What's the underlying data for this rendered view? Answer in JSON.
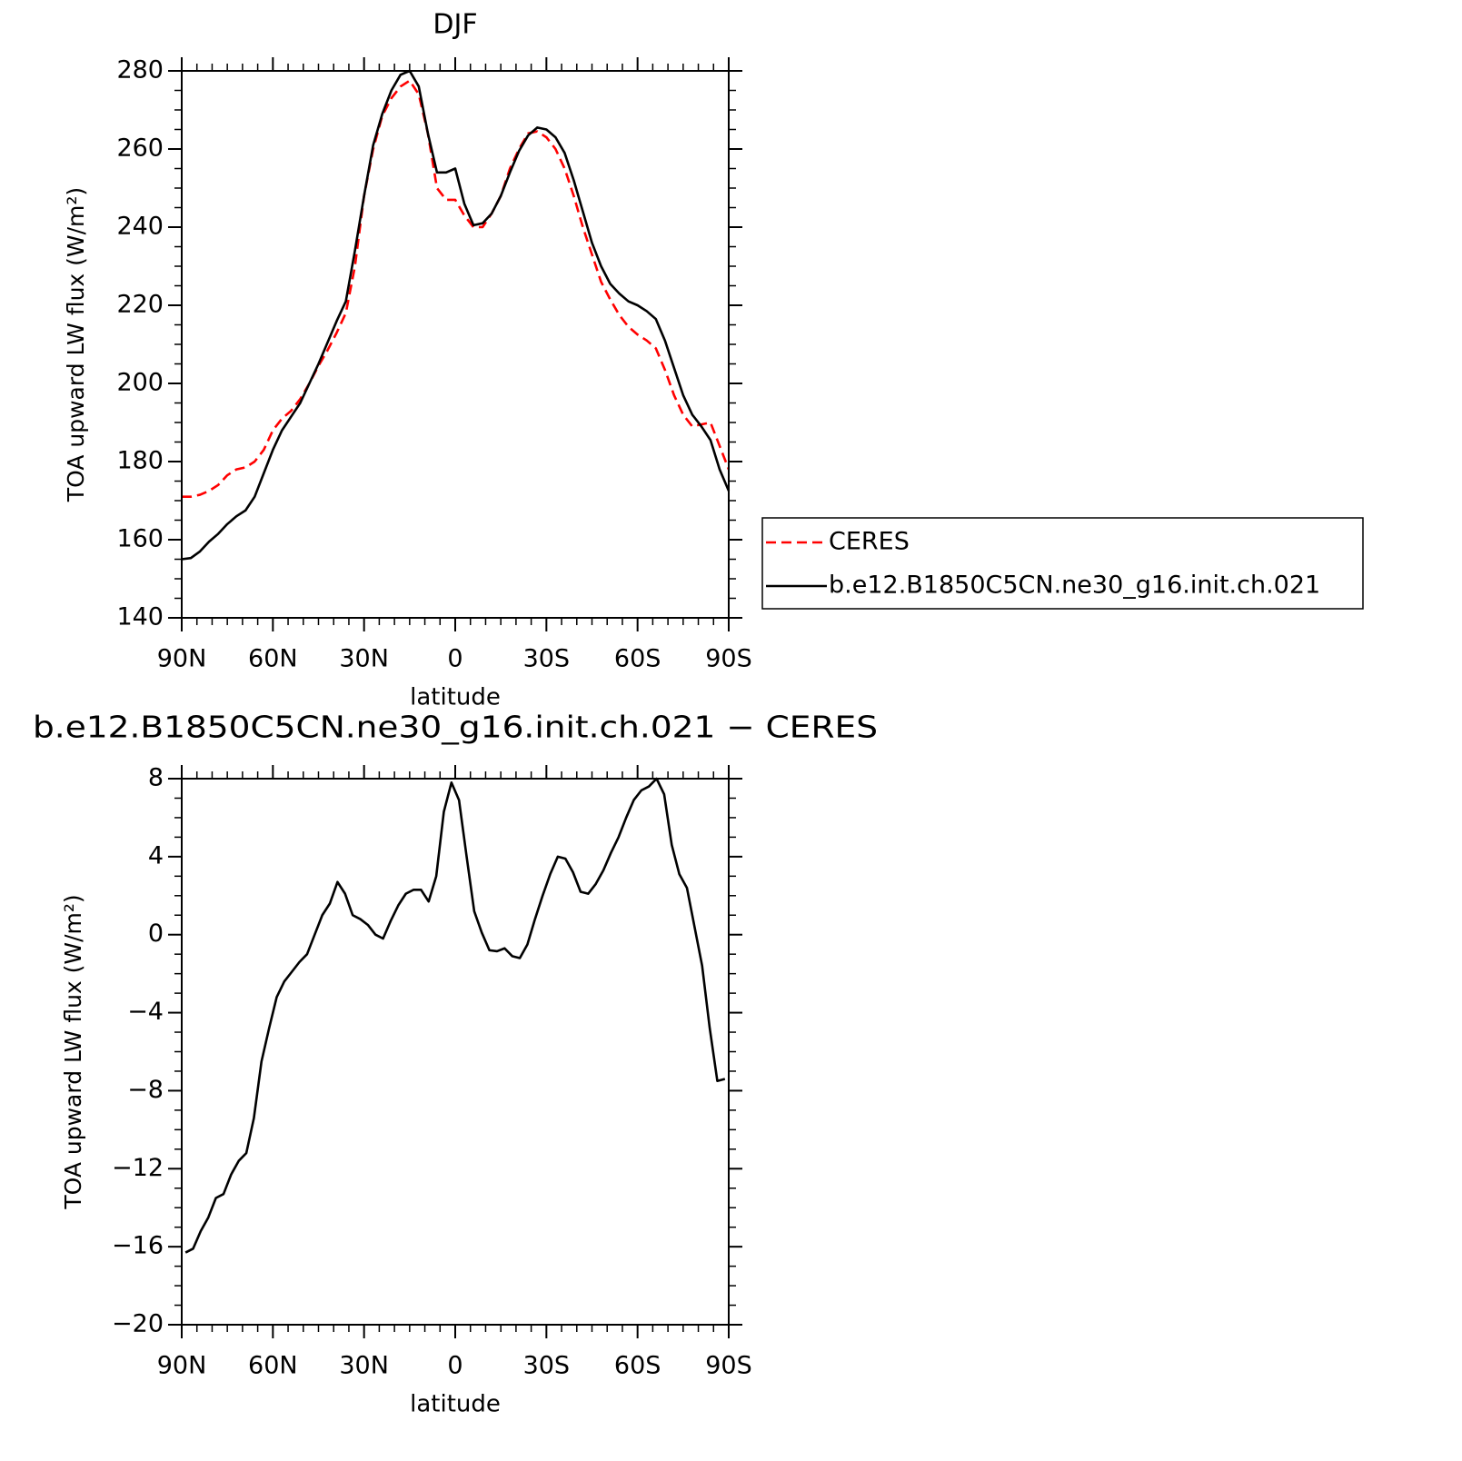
{
  "chart_data": [
    {
      "type": "line",
      "title": "DJF",
      "x_label": "latitude",
      "y_label": "TOA upward LW flux (W/m²)",
      "x": [
        90,
        87,
        84,
        81,
        78,
        75,
        72,
        69,
        66,
        63,
        60,
        57,
        54,
        51,
        48,
        45,
        42,
        39,
        36,
        33,
        30,
        27,
        24,
        21,
        18,
        15,
        12,
        9,
        6,
        3,
        0,
        -3,
        -6,
        -9,
        -12,
        -15,
        -18,
        -21,
        -24,
        -27,
        -30,
        -33,
        -36,
        -39,
        -42,
        -45,
        -48,
        -51,
        -54,
        -57,
        -60,
        -63,
        -66,
        -69,
        -72,
        -75,
        -78,
        -81,
        -84,
        -87,
        -90
      ],
      "series": [
        {
          "name": "CERES",
          "color": "#ff0000",
          "style": "dashed",
          "values": [
            171,
            171,
            171.5,
            172.5,
            174,
            176.5,
            178,
            178.5,
            180,
            183,
            188,
            191,
            193,
            196,
            200,
            204.5,
            208.5,
            213,
            218,
            230,
            248,
            260,
            268.5,
            273,
            276,
            277.5,
            274,
            264,
            250,
            247,
            247,
            243,
            240,
            240,
            243.5,
            248,
            255,
            260,
            264,
            264.5,
            263,
            260,
            255,
            248,
            240,
            233,
            226,
            221.5,
            217.5,
            214.5,
            212.5,
            211,
            209,
            203.5,
            197,
            192,
            189,
            189.5,
            190,
            184,
            178
          ]
        },
        {
          "name": "b.e12.B1850C5CN.ne30_g16.init.ch.021",
          "color": "#000000",
          "style": "solid",
          "values": [
            155,
            155.3,
            157,
            159.5,
            161.5,
            164,
            166,
            167.5,
            171,
            177,
            183,
            188,
            191.5,
            195,
            200,
            205,
            210.5,
            216,
            221,
            234,
            248,
            261,
            269,
            275,
            279,
            280,
            276,
            264,
            254,
            254,
            255,
            246,
            240.5,
            241,
            243.5,
            248,
            254,
            259.5,
            263.5,
            265.5,
            265,
            263,
            259,
            252,
            244,
            236,
            230,
            225.5,
            223,
            221,
            220,
            218.5,
            216.5,
            211,
            204,
            197,
            192,
            189,
            185.5,
            178,
            172.5
          ]
        }
      ],
      "xlim": [
        90,
        -90
      ],
      "xticks": [
        {
          "value": 90,
          "label": "90N"
        },
        {
          "value": 60,
          "label": "60N"
        },
        {
          "value": 30,
          "label": "30N"
        },
        0,
        {
          "value": -30,
          "label": "30S"
        },
        {
          "value": -60,
          "label": "60S"
        },
        {
          "value": -90,
          "label": "90S"
        }
      ],
      "ylim": [
        140,
        280
      ],
      "yticks": [
        140,
        160,
        180,
        200,
        220,
        240,
        260,
        280
      ],
      "legend": "right"
    },
    {
      "type": "line",
      "title": "b.e12.B1850C5CN.ne30_g16.init.ch.021 − CERES",
      "x_label": "latitude",
      "y_label": "TOA upward LW flux (W/m²)",
      "x": [
        88.75,
        86.25,
        83.75,
        81.25,
        78.75,
        76.25,
        73.75,
        71.25,
        68.75,
        66.25,
        63.75,
        61.25,
        58.75,
        56.25,
        53.75,
        51.25,
        48.75,
        46.25,
        43.75,
        41.25,
        38.75,
        36.25,
        33.75,
        31.25,
        28.75,
        26.25,
        23.75,
        21.25,
        18.75,
        16.25,
        13.75,
        11.25,
        8.75,
        6.25,
        3.75,
        1.25,
        -1.25,
        -3.75,
        -6.25,
        -8.75,
        -11.25,
        -13.75,
        -16.25,
        -18.75,
        -21.25,
        -23.75,
        -26.25,
        -28.75,
        -31.25,
        -33.75,
        -36.25,
        -38.75,
        -41.25,
        -43.75,
        -46.25,
        -48.75,
        -51.25,
        -53.75,
        -56.25,
        -58.75,
        -61.25,
        -63.75,
        -66.25,
        -68.75,
        -71.25,
        -73.75,
        -76.25,
        -78.75,
        -81.25,
        -83.75,
        -86.25,
        -88.75
      ],
      "color": "#000000",
      "style": "solid",
      "values": [
        -16.3,
        -16.1,
        -15.2,
        -14.5,
        -13.5,
        -13.3,
        -12.3,
        -11.6,
        -11.2,
        -9.4,
        -6.5,
        -4.8,
        -3.2,
        -2.4,
        -1.9,
        -1.4,
        -1.0,
        0,
        1.0,
        1.6,
        2.7,
        2.1,
        1.0,
        0.8,
        0.5,
        0,
        -0.2,
        0.7,
        1.5,
        2.1,
        2.3,
        2.3,
        1.7,
        3.0,
        6.3,
        7.8,
        6.9,
        4.0,
        1.2,
        0.1,
        -0.8,
        -0.85,
        -0.7,
        -1.1,
        -1.2,
        -0.5,
        0.8,
        2.0,
        3.1,
        4.0,
        3.9,
        3.2,
        2.2,
        2.1,
        2.6,
        3.3,
        4.2,
        5.0,
        6.0,
        6.9,
        7.4,
        7.6,
        8.0,
        7.2,
        4.6,
        3.1,
        2.4,
        0.4,
        -1.6,
        -4.8,
        -7.5,
        -7.4
      ],
      "xlim": [
        90,
        -90
      ],
      "xticks": [
        {
          "value": 90,
          "label": "90N"
        },
        {
          "value": 60,
          "label": "60N"
        },
        {
          "value": 30,
          "label": "30N"
        },
        0,
        {
          "value": -30,
          "label": "30S"
        },
        {
          "value": -60,
          "label": "60S"
        },
        {
          "value": -90,
          "label": "90S"
        }
      ],
      "ylim": [
        -20,
        8
      ],
      "yticks": [
        {
          "value": -20,
          "label": "−20"
        },
        {
          "value": -16,
          "label": "−16"
        },
        {
          "value": -12,
          "label": "−12"
        },
        {
          "value": -8,
          "label": "−8"
        },
        {
          "value": -4,
          "label": "−4"
        },
        0,
        4,
        8
      ]
    }
  ]
}
